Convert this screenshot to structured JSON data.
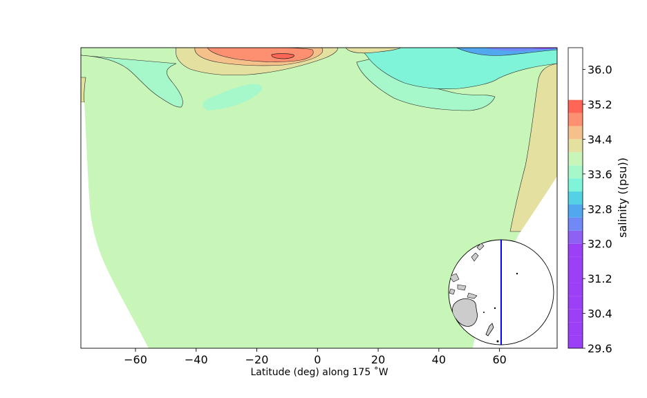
{
  "chart_data": {
    "type": "heatmap",
    "title": "",
    "xlabel": "Latitude (deg) along 175 ˚W",
    "ylabel": "",
    "xlim": [
      -78,
      79
    ],
    "x_ticks": [
      "−60",
      "−40",
      "−20",
      "0",
      "20",
      "40",
      "60"
    ],
    "x_tick_values": [
      -60,
      -40,
      -20,
      0,
      20,
      40,
      60
    ],
    "colorbar": {
      "label": "salinity ((psu))",
      "levels": [
        29.6,
        29.9,
        30.2,
        30.5,
        30.8,
        31.1,
        31.4,
        31.7,
        32.0,
        32.3,
        32.6,
        32.9,
        33.2,
        33.5,
        33.8,
        34.1,
        34.4,
        34.7,
        35.0,
        35.3,
        35.6,
        35.9,
        36.2,
        36.5
      ],
      "tick_labels": [
        "29.6",
        "30.4",
        "31.2",
        "32.0",
        "32.8",
        "33.6",
        "34.4",
        "35.2",
        "36.0"
      ],
      "tick_values": [
        29.6,
        30.4,
        31.2,
        32.0,
        32.8,
        33.6,
        34.4,
        35.2,
        36.0
      ],
      "colors": [
        "#9b40f6",
        "#9b40f6",
        "#9b40f6",
        "#9b40f6",
        "#9b40f6",
        "#9b40f6",
        "#9b40f6",
        "#9b40f6",
        "#8f60f4",
        "#7189f7",
        "#52a8ee",
        "#54d1e4",
        "#80f4d8",
        "#a6f7c9",
        "#c8f5b8",
        "#e3e0a0",
        "#f5c08a",
        "#fd9070",
        "#ff6655"
      ]
    },
    "grid": false,
    "inset": {
      "type": "globe",
      "section_longitude": "175˚W",
      "line_color": "#0000ff"
    }
  }
}
